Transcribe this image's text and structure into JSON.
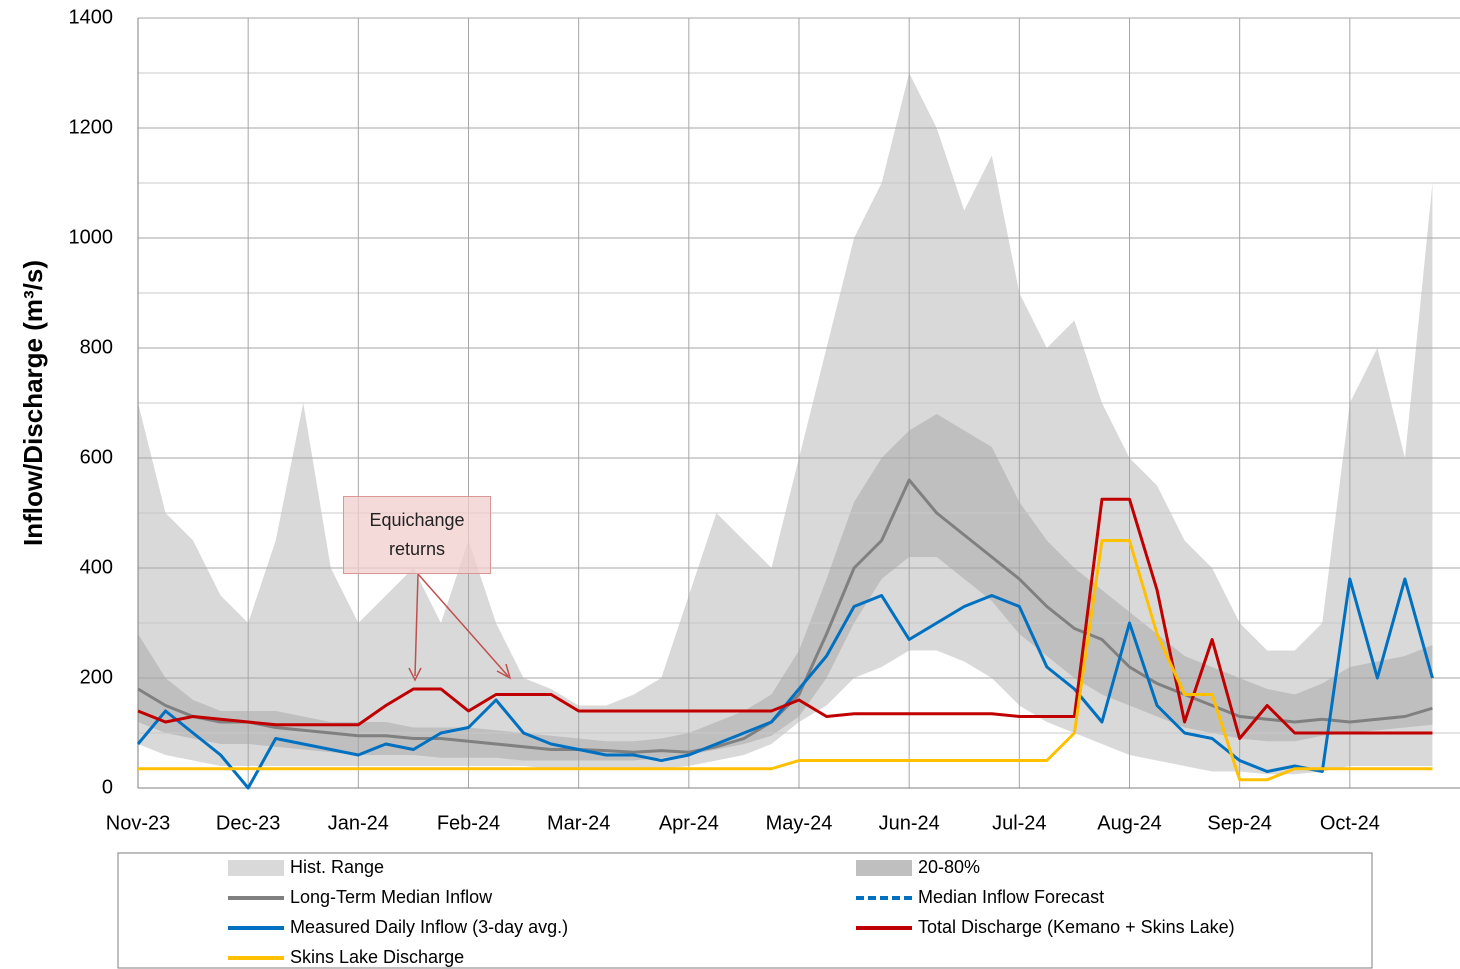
{
  "chart_data": {
    "type": "line",
    "y_label": "Inflow/Discharge (m³/s)",
    "categories": [
      "Nov-23",
      null,
      null,
      null,
      "Dec-23",
      null,
      null,
      null,
      "Jan-24",
      null,
      null,
      null,
      "Feb-24",
      null,
      null,
      null,
      "Mar-24",
      null,
      null,
      null,
      "Apr-24",
      null,
      null,
      null,
      "May-24",
      null,
      null,
      null,
      "Jun-24",
      null,
      null,
      null,
      "Jul-24",
      null,
      null,
      null,
      "Aug-24",
      null,
      null,
      null,
      "Sep-24",
      null,
      null,
      null,
      "Oct-24",
      null,
      null,
      null
    ],
    "ylim": [
      0,
      1400
    ],
    "yticks": [
      0,
      200,
      400,
      600,
      800,
      1000,
      1200,
      1400
    ],
    "yminor": [
      100,
      300,
      500,
      700,
      900,
      1100,
      1300
    ],
    "grid": true,
    "bands": [
      {
        "name": "Hist. Range",
        "color": "#d9d9d9",
        "low": [
          80,
          60,
          50,
          40,
          40,
          40,
          40,
          40,
          40,
          40,
          40,
          40,
          40,
          40,
          40,
          35,
          35,
          35,
          35,
          35,
          40,
          50,
          60,
          80,
          120,
          150,
          200,
          220,
          250,
          250,
          230,
          200,
          150,
          120,
          100,
          80,
          60,
          50,
          40,
          30,
          30,
          25,
          25,
          30,
          40,
          40,
          40,
          40
        ],
        "high": [
          700,
          500,
          450,
          350,
          300,
          450,
          700,
          400,
          300,
          350,
          400,
          300,
          450,
          300,
          200,
          180,
          150,
          150,
          170,
          200,
          350,
          500,
          450,
          400,
          600,
          800,
          1000,
          1100,
          1300,
          1200,
          1050,
          1150,
          900,
          800,
          850,
          700,
          600,
          550,
          450,
          400,
          300,
          250,
          250,
          300,
          700,
          800,
          600,
          1100
        ]
      },
      {
        "name": "20-80%",
        "color": "#bfbfbf",
        "low": [
          120,
          100,
          90,
          80,
          80,
          75,
          70,
          65,
          60,
          60,
          60,
          55,
          55,
          55,
          50,
          50,
          50,
          50,
          50,
          55,
          60,
          70,
          80,
          95,
          130,
          200,
          300,
          380,
          420,
          420,
          380,
          340,
          280,
          240,
          200,
          170,
          150,
          130,
          110,
          100,
          90,
          85,
          85,
          95,
          100,
          105,
          110,
          115
        ],
        "high": [
          280,
          200,
          160,
          140,
          140,
          140,
          130,
          120,
          120,
          120,
          110,
          110,
          110,
          105,
          100,
          95,
          90,
          85,
          85,
          90,
          100,
          120,
          140,
          170,
          250,
          380,
          520,
          600,
          650,
          680,
          650,
          620,
          520,
          450,
          400,
          360,
          320,
          280,
          240,
          220,
          200,
          180,
          170,
          190,
          220,
          230,
          240,
          260
        ]
      }
    ],
    "series": [
      {
        "name": "Long-Term Median Inflow",
        "color": "#808080",
        "values": [
          180,
          150,
          130,
          120,
          120,
          110,
          105,
          100,
          95,
          95,
          90,
          90,
          85,
          80,
          75,
          70,
          70,
          68,
          65,
          68,
          65,
          75,
          90,
          120,
          170,
          280,
          400,
          450,
          560,
          500,
          460,
          420,
          380,
          330,
          290,
          270,
          220,
          190,
          170,
          150,
          130,
          125,
          120,
          125,
          120,
          125,
          130,
          145
        ]
      },
      {
        "name": "Median Inflow Forecast",
        "color": "#0070c0",
        "dashed": true,
        "values": [
          null,
          null,
          null,
          null,
          null,
          null,
          null,
          null,
          null,
          null,
          null,
          null,
          null,
          null,
          null,
          null,
          null,
          null,
          null,
          null,
          null,
          null,
          null,
          null,
          null,
          null,
          null,
          null,
          null,
          null,
          null,
          null,
          null,
          null,
          null,
          null,
          null,
          null,
          null,
          null,
          null,
          null,
          null,
          null,
          null,
          null,
          null,
          null
        ]
      },
      {
        "name": "Measured Daily Inflow (3-day avg.)",
        "color": "#0070c0",
        "values": [
          80,
          140,
          100,
          60,
          0,
          90,
          80,
          70,
          60,
          80,
          70,
          100,
          110,
          160,
          100,
          80,
          70,
          60,
          60,
          50,
          60,
          80,
          100,
          120,
          180,
          240,
          330,
          350,
          270,
          300,
          330,
          350,
          330,
          220,
          180,
          120,
          300,
          150,
          100,
          90,
          50,
          30,
          40,
          30,
          380,
          200,
          380,
          200
        ]
      },
      {
        "name": "Total Discharge (Kemano + Skins Lake)",
        "color": "#c00000",
        "values": [
          140,
          120,
          130,
          125,
          120,
          115,
          115,
          115,
          115,
          150,
          180,
          180,
          140,
          170,
          170,
          170,
          140,
          140,
          140,
          140,
          140,
          140,
          140,
          140,
          160,
          130,
          135,
          135,
          135,
          135,
          135,
          135,
          130,
          130,
          130,
          525,
          525,
          360,
          120,
          270,
          90,
          150,
          100,
          100,
          100,
          100,
          100,
          100
        ]
      },
      {
        "name": "Skins Lake Discharge",
        "color": "#ffc000",
        "values": [
          35,
          35,
          35,
          35,
          35,
          35,
          35,
          35,
          35,
          35,
          35,
          35,
          35,
          35,
          35,
          35,
          35,
          35,
          35,
          35,
          35,
          35,
          35,
          35,
          50,
          50,
          50,
          50,
          50,
          50,
          50,
          50,
          50,
          50,
          100,
          450,
          450,
          280,
          170,
          170,
          15,
          15,
          35,
          35,
          35,
          35,
          35,
          35
        ]
      }
    ],
    "annotations": [
      {
        "text": "Equichange returns"
      }
    ]
  }
}
